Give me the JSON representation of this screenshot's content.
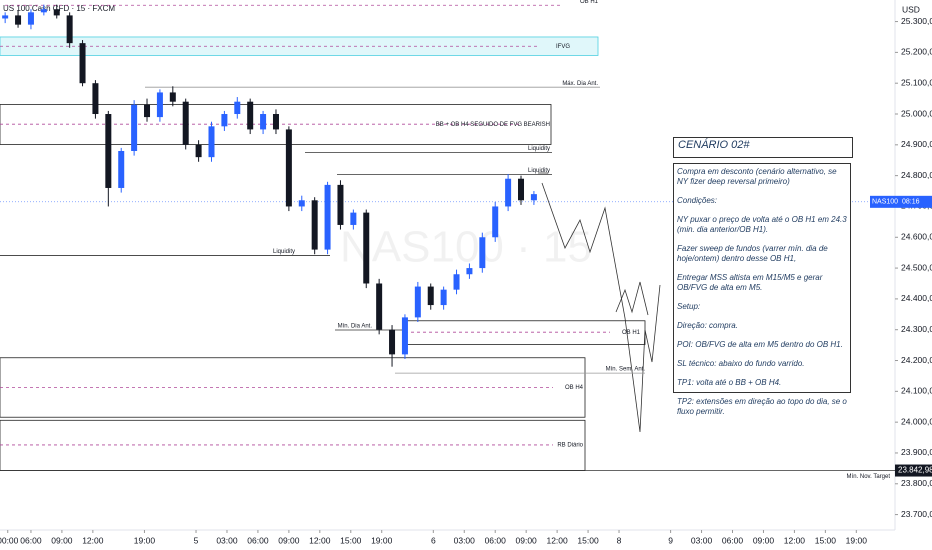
{
  "chart_data": {
    "type": "candlestick",
    "title": "US 100 Cash CFD · 15 · FXCM",
    "watermark": "NAS100 · 15",
    "currency": "USD",
    "up_color": "#2962ff",
    "down_color": "#131722",
    "ylim": [
      23650,
      25370
    ],
    "yticks": [
      {
        "value": 25300,
        "label": "25.300,00"
      },
      {
        "value": 25200,
        "label": "25.200,00"
      },
      {
        "value": 25100,
        "label": "25.100,00"
      },
      {
        "value": 25000,
        "label": "25.000,00"
      },
      {
        "value": 24900,
        "label": "24.900,00"
      },
      {
        "value": 24800,
        "label": "24.800,00"
      },
      {
        "value": 24700,
        "label": "24.700,00"
      },
      {
        "value": 24600,
        "label": "24.600,00"
      },
      {
        "value": 24500,
        "label": "24.500,00"
      },
      {
        "value": 24400,
        "label": "24.400,00"
      },
      {
        "value": 24300,
        "label": "24.300,00"
      },
      {
        "value": 24200,
        "label": "24.200,00"
      },
      {
        "value": 24100,
        "label": "24.100,00"
      },
      {
        "value": 24000,
        "label": "24.000,00"
      },
      {
        "value": 23900,
        "label": "23.900,00"
      },
      {
        "value": 23800,
        "label": "23.800,00"
      },
      {
        "value": 23700,
        "label": "23.700,00"
      }
    ],
    "xlim": [
      0,
      347
    ],
    "xticks": [
      {
        "value": 3,
        "label": "00:00"
      },
      {
        "value": 12,
        "label": "06:00"
      },
      {
        "value": 24,
        "label": "09:00"
      },
      {
        "value": 36,
        "label": "12:00"
      },
      {
        "value": 56,
        "label": "19:00"
      },
      {
        "value": 76,
        "label": "5"
      },
      {
        "value": 88,
        "label": "03:00"
      },
      {
        "value": 100,
        "label": "06:00"
      },
      {
        "value": 112,
        "label": "09:00"
      },
      {
        "value": 124,
        "label": "12:00"
      },
      {
        "value": 136,
        "label": "15:00"
      },
      {
        "value": 148,
        "label": "19:00"
      },
      {
        "value": 168,
        "label": "6"
      },
      {
        "value": 180,
        "label": "03:00"
      },
      {
        "value": 192,
        "label": "06:00"
      },
      {
        "value": 204,
        "label": "09:00"
      },
      {
        "value": 216,
        "label": "12:00"
      },
      {
        "value": 228,
        "label": "15:00"
      },
      {
        "value": 240,
        "label": "8"
      },
      {
        "value": 260,
        "label": "9"
      },
      {
        "value": 272,
        "label": "03:00"
      },
      {
        "value": 284,
        "label": "06:00"
      },
      {
        "value": 296,
        "label": "09:00"
      },
      {
        "value": 308,
        "label": "12:00"
      },
      {
        "value": 320,
        "label": "15:00"
      },
      {
        "value": 332,
        "label": "19:00"
      }
    ],
    "x": [
      2,
      7,
      12,
      17,
      22,
      27,
      32,
      37,
      42,
      47,
      52,
      57,
      62,
      67,
      72,
      77,
      82,
      87,
      92,
      97,
      102,
      107,
      112,
      117,
      122,
      127,
      132,
      137,
      142,
      147,
      152,
      157,
      162,
      167,
      172,
      177,
      182,
      187,
      192,
      197,
      202,
      207
    ],
    "open": [
      25310,
      25320,
      25290,
      25330,
      25340,
      25320,
      25230,
      25100,
      25000,
      24760,
      24880,
      25030,
      24990,
      25070,
      25040,
      24900,
      24860,
      24960,
      25000,
      25040,
      24950,
      25000,
      24950,
      24700,
      24720,
      24560,
      24770,
      24640,
      24680,
      24450,
      24300,
      24220,
      24340,
      24440,
      24380,
      24430,
      24480,
      24500,
      24600,
      24700,
      24790,
      24720
    ],
    "high": [
      25330,
      25335,
      25340,
      25355,
      25355,
      25330,
      25240,
      25110,
      25010,
      24890,
      25045,
      25050,
      25080,
      25090,
      25050,
      24915,
      24975,
      25010,
      25055,
      25050,
      25010,
      25015,
      24960,
      24735,
      24730,
      24780,
      24785,
      24690,
      24690,
      24465,
      24315,
      24350,
      24455,
      24450,
      24440,
      24495,
      24515,
      24615,
      24715,
      24805,
      24800,
      24750
    ],
    "low": [
      25295,
      25280,
      25275,
      25320,
      25310,
      25215,
      25090,
      24985,
      24700,
      24745,
      24865,
      24975,
      24975,
      25025,
      24885,
      24845,
      24845,
      24945,
      24985,
      24935,
      24935,
      24935,
      24685,
      24685,
      24545,
      24545,
      24625,
      24625,
      24435,
      24285,
      24180,
      24205,
      24325,
      24365,
      24365,
      24415,
      24465,
      24485,
      24585,
      24685,
      24705,
      24705
    ],
    "close": [
      25320,
      25290,
      25330,
      25340,
      25320,
      25230,
      25100,
      25000,
      24760,
      24880,
      25030,
      24990,
      25070,
      25040,
      24900,
      24860,
      24960,
      25000,
      25040,
      24950,
      25000,
      24950,
      24700,
      24720,
      24560,
      24770,
      24640,
      24680,
      24450,
      24300,
      24220,
      24340,
      24440,
      24380,
      24430,
      24480,
      24500,
      24600,
      24700,
      24790,
      24720,
      24740
    ],
    "zones": [
      {
        "label": "IFVG",
        "top": 25250,
        "bottom": 25190,
        "mid": 25220
      },
      {
        "label": "BB + OB H4 SEGUIDO DE FVG BEARISH",
        "top": 25031,
        "bottom": 24901,
        "mid": 24967
      },
      {
        "label": "OB H1",
        "top": 24329,
        "bottom": 24252,
        "mid": 24292
      },
      {
        "label": "OB H4",
        "top": 24209,
        "bottom": 24016,
        "mid": 24112
      },
      {
        "label": "RB Diário",
        "top": 24006,
        "bottom": 23843,
        "mid": 23926
      }
    ],
    "levels": [
      {
        "label": "OB H1",
        "price": 25353
      },
      {
        "label": "Máx. Dia Ant.",
        "price": 25087
      },
      {
        "label": "Liquidity",
        "price": 24875
      },
      {
        "label": "Liquidity",
        "price": 24804
      },
      {
        "label": "Liquidity",
        "price": 24541
      },
      {
        "label": "Mín. Dia Ant.",
        "price": 24299
      },
      {
        "label": "Mín. Sem. Ant.",
        "price": 24159
      },
      {
        "label": "Mín. Nov. Target",
        "price": 23842.98,
        "tag": "23.842,98"
      }
    ],
    "last": {
      "price": 24715,
      "symbol": "NAS100",
      "countdown": "08:16"
    },
    "scenario": {
      "title": "CENÁRIO 02#",
      "paragraphs": [
        "Compra em desconto (cenário alternativo, se NY fizer deep reversal primeiro)",
        "Condições:",
        "NY puxar o preço de volta até o OB H1 em 24.3 (min. dia anterior/OB H1).",
        "Fazer sweep de fundos (varrer mín. dia de hoje/ontem) dentro desse OB H1,",
        "Entregar MSS altista em M15/M5 e gerar OB/FVG de alta em M5.",
        "Setup:",
        "Direção: compra.",
        "POI: OB/FVG de alta em M5 dentro do OB H1.",
        "SL técnico: abaixo do fundo varrido.",
        "TP1: volta até o BB + OB H4.",
        "TP2: extensões em direção ao topo do dia, se o fluxo permitir."
      ]
    }
  }
}
